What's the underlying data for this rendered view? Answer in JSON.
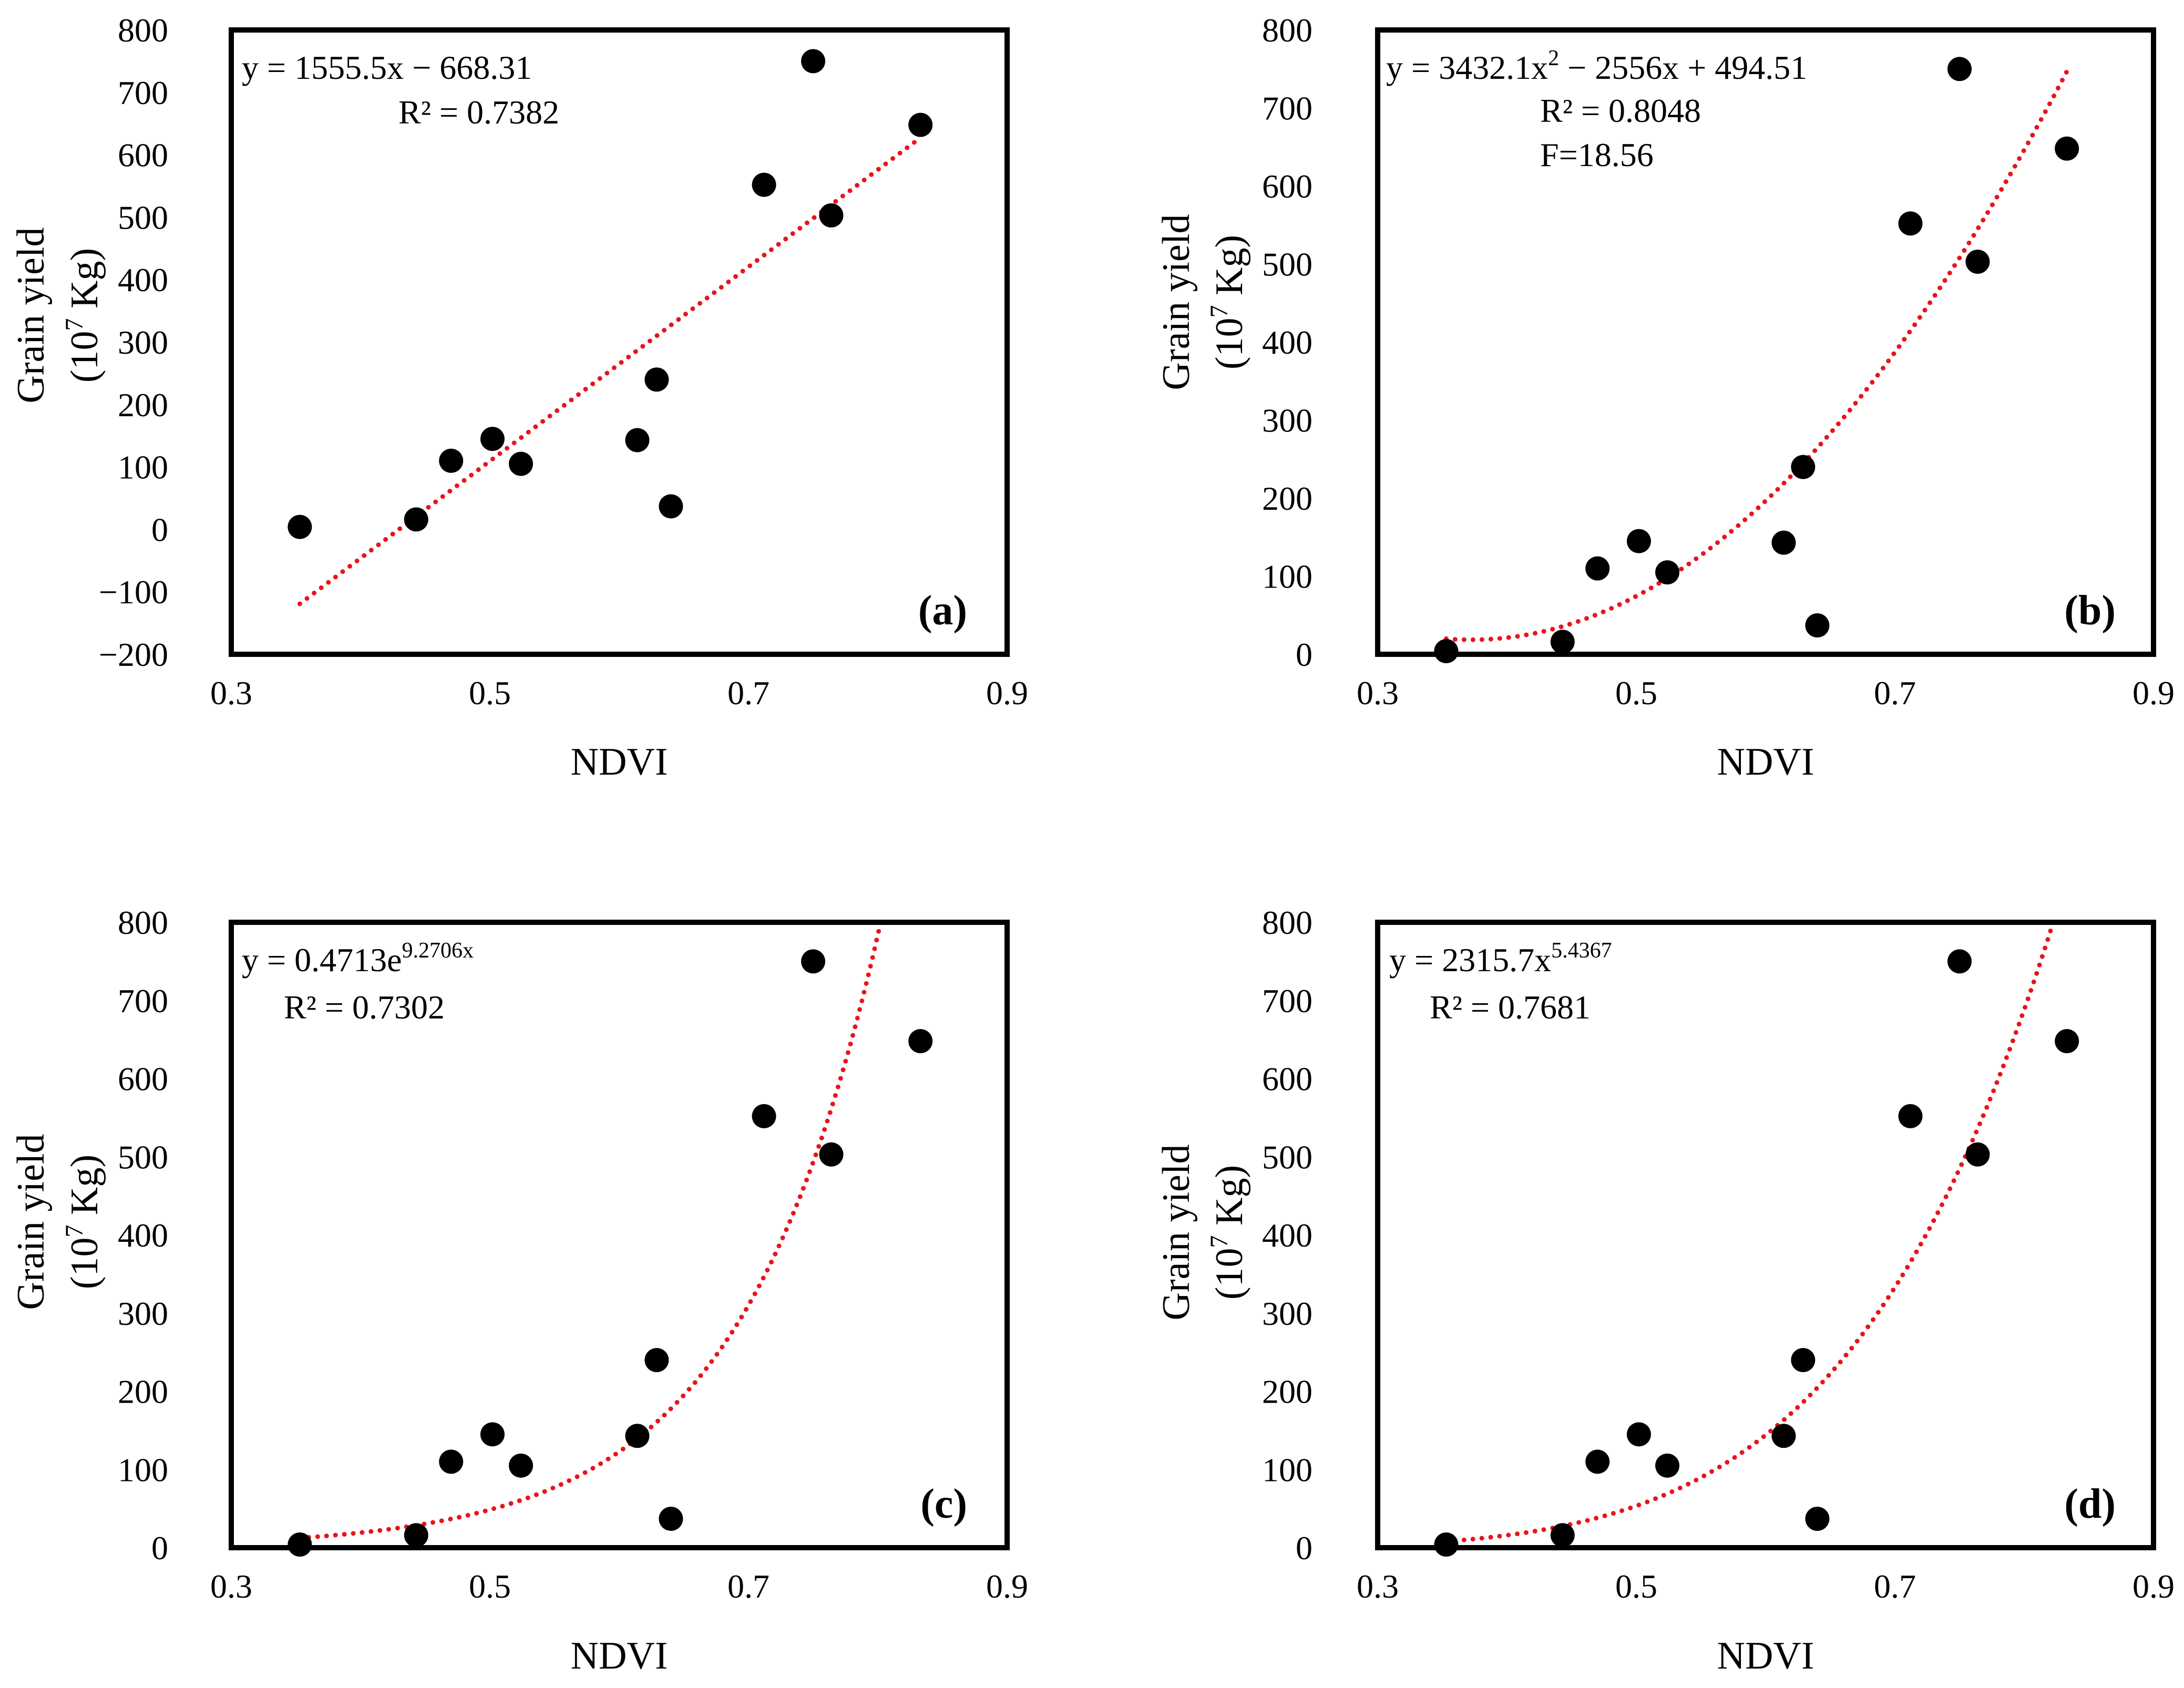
{
  "figure": {
    "x_ticks": [
      "0.3",
      "0.5",
      "0.7",
      "0.9"
    ],
    "xlabel": "NDVI",
    "ylabel_line1": "Grain yield",
    "ylabel_line2_pre": "(10",
    "ylabel_line2_sup": "7",
    "ylabel_line2_post": " Kg)"
  },
  "colors": {
    "trendline": "#e8141b",
    "marker": "#000000",
    "frame": "#000000"
  },
  "chart_data": [
    {
      "type": "scatter",
      "panel": "(a)",
      "xlabel": "NDVI",
      "ylabel": "Grain yield (10^7 Kg)",
      "xlim": [
        0.3,
        0.9
      ],
      "ylim": [
        -200,
        800
      ],
      "y_ticks": [
        "800",
        "700",
        "600",
        "500",
        "400",
        "300",
        "200",
        "100",
        "0",
        "−100",
        "−200"
      ],
      "points": [
        [
          0.353,
          4
        ],
        [
          0.443,
          16
        ],
        [
          0.47,
          110
        ],
        [
          0.502,
          145
        ],
        [
          0.524,
          105
        ],
        [
          0.614,
          143
        ],
        [
          0.629,
          240
        ],
        [
          0.64,
          37
        ],
        [
          0.712,
          552
        ],
        [
          0.75,
          750
        ],
        [
          0.764,
          503
        ],
        [
          0.833,
          648
        ]
      ],
      "trendline": {
        "model": "linear",
        "coef": [
          1555.5,
          -668.31
        ],
        "x_range": [
          0.353,
          0.833
        ]
      },
      "equation": {
        "main": "y = 1555.5x − 668.31",
        "sup": "",
        "tail": ""
      },
      "stats": [
        "R² = 0.7382"
      ]
    },
    {
      "type": "scatter",
      "panel": "(b)",
      "xlabel": "NDVI",
      "ylabel": "Grain yield (10^7 Kg)",
      "xlim": [
        0.3,
        0.9
      ],
      "ylim": [
        0,
        800
      ],
      "y_ticks": [
        "800",
        "700",
        "600",
        "500",
        "400",
        "300",
        "200",
        "100",
        "0"
      ],
      "points": [
        [
          0.353,
          4
        ],
        [
          0.443,
          16
        ],
        [
          0.47,
          110
        ],
        [
          0.502,
          145
        ],
        [
          0.524,
          105
        ],
        [
          0.614,
          143
        ],
        [
          0.629,
          240
        ],
        [
          0.64,
          37
        ],
        [
          0.712,
          552
        ],
        [
          0.75,
          750
        ],
        [
          0.764,
          503
        ],
        [
          0.833,
          648
        ]
      ],
      "trendline": {
        "model": "poly2",
        "coef": [
          3432.1,
          -2556,
          494.51
        ],
        "x_range": [
          0.353,
          0.833
        ]
      },
      "equation": {
        "main": "y = 3432.1x",
        "sup": "2",
        "tail": " − 2556x + 494.51"
      },
      "stats": [
        "R² = 0.8048",
        "F=18.56"
      ]
    },
    {
      "type": "scatter",
      "panel": "(c)",
      "xlabel": "NDVI",
      "ylabel": "Grain yield (10^7 Kg)",
      "xlim": [
        0.3,
        0.9
      ],
      "ylim": [
        0,
        800
      ],
      "y_ticks": [
        "800",
        "700",
        "600",
        "500",
        "400",
        "300",
        "200",
        "100",
        "0"
      ],
      "points": [
        [
          0.353,
          4
        ],
        [
          0.443,
          16
        ],
        [
          0.47,
          110
        ],
        [
          0.502,
          145
        ],
        [
          0.524,
          105
        ],
        [
          0.614,
          143
        ],
        [
          0.629,
          240
        ],
        [
          0.64,
          37
        ],
        [
          0.712,
          552
        ],
        [
          0.75,
          750
        ],
        [
          0.764,
          503
        ],
        [
          0.833,
          648
        ]
      ],
      "trendline": {
        "model": "exp",
        "coef": [
          0.4713,
          9.2706
        ],
        "x_range": [
          0.353,
          0.833
        ]
      },
      "equation": {
        "main": "y = 0.4713e",
        "sup": "9.2706x",
        "tail": ""
      },
      "stats": [
        "R² = 0.7302"
      ]
    },
    {
      "type": "scatter",
      "panel": "(d)",
      "xlabel": "NDVI",
      "ylabel": "Grain yield (10^7 Kg)",
      "xlim": [
        0.3,
        0.9
      ],
      "ylim": [
        0,
        800
      ],
      "y_ticks": [
        "800",
        "700",
        "600",
        "500",
        "400",
        "300",
        "200",
        "100",
        "0"
      ],
      "points": [
        [
          0.353,
          4
        ],
        [
          0.443,
          16
        ],
        [
          0.47,
          110
        ],
        [
          0.502,
          145
        ],
        [
          0.524,
          105
        ],
        [
          0.614,
          143
        ],
        [
          0.629,
          240
        ],
        [
          0.64,
          37
        ],
        [
          0.712,
          552
        ],
        [
          0.75,
          750
        ],
        [
          0.764,
          503
        ],
        [
          0.833,
          648
        ]
      ],
      "trendline": {
        "model": "power",
        "coef": [
          2315.7,
          5.4367
        ],
        "x_range": [
          0.353,
          0.833
        ]
      },
      "equation": {
        "main": "y = 2315.7x",
        "sup": "5.4367",
        "tail": ""
      },
      "stats": [
        "R² = 0.7681"
      ]
    }
  ]
}
